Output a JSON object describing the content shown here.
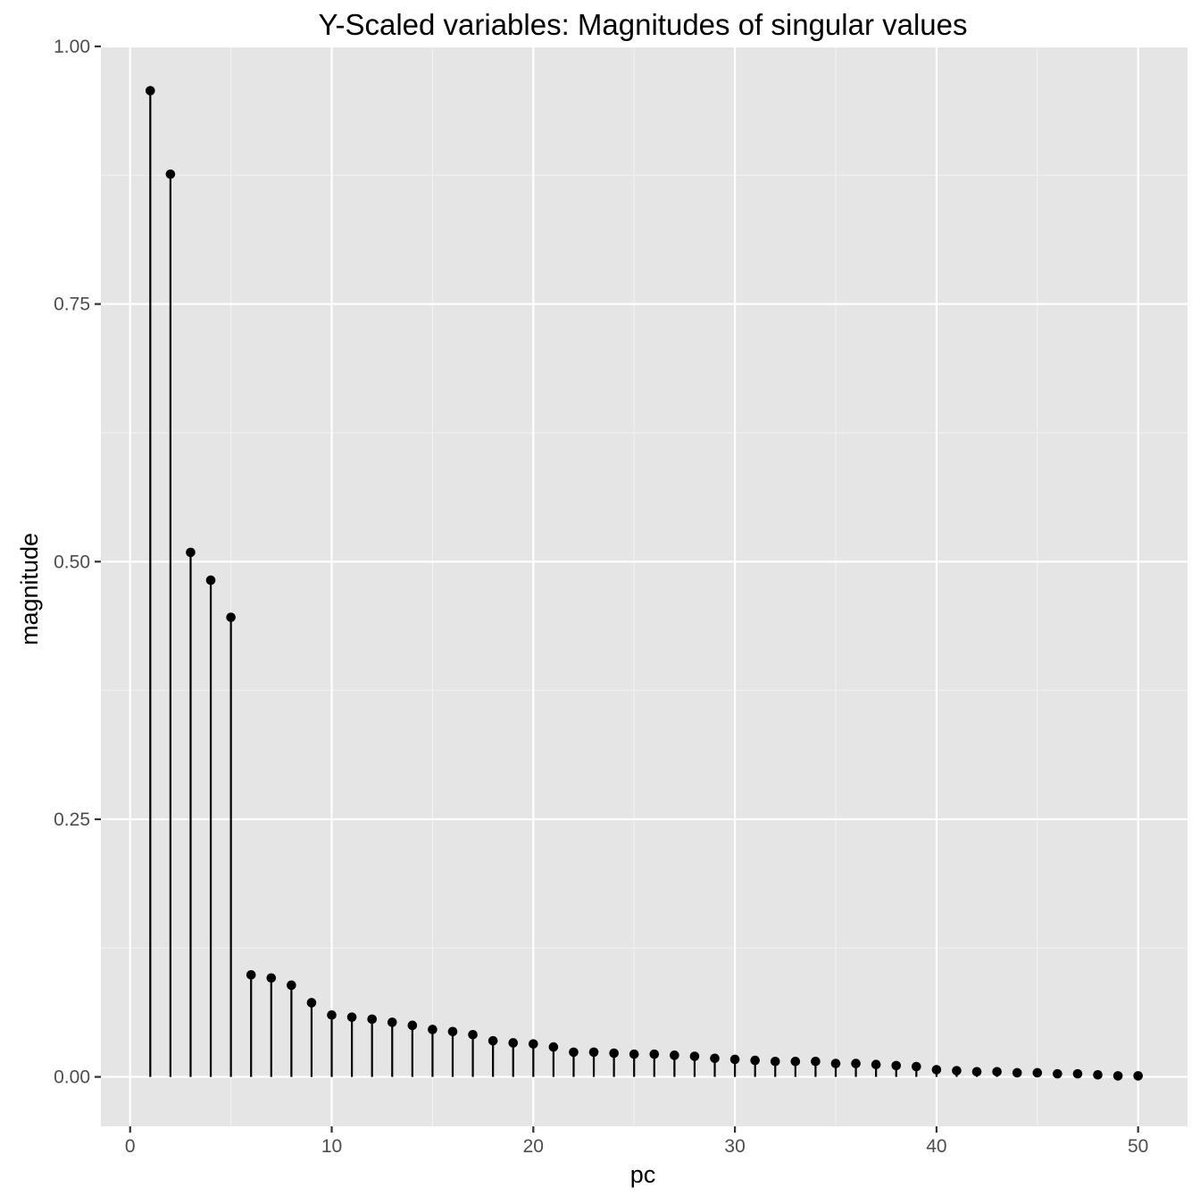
{
  "chart_data": {
    "type": "stem",
    "title": "Y-Scaled variables: Magnitudes of singular values",
    "xlabel": "pc",
    "ylabel": "magnitude",
    "xlim": [
      -1.45,
      52.45
    ],
    "ylim": [
      -0.048,
      1.0
    ],
    "x_ticks": [
      0,
      10,
      20,
      30,
      40,
      50
    ],
    "x_tick_labels": [
      "0",
      "10",
      "20",
      "30",
      "40",
      "50"
    ],
    "y_ticks": [
      0.0,
      0.25,
      0.5,
      0.75,
      1.0
    ],
    "y_tick_labels": [
      "0.00",
      "0.25",
      "0.50",
      "0.75",
      "1.00"
    ],
    "grid": true,
    "legend": "none",
    "colors": {
      "panel_background": "#e5e5e5",
      "grid_major": "#ffffff",
      "grid_minor": "#f2f2f2",
      "marks": "#000000",
      "tick_label": "#4d4d4d",
      "tick_mark": "#333333"
    },
    "series": [
      {
        "x": [
          1,
          2,
          3,
          4,
          5,
          6,
          7,
          8,
          9,
          10,
          11,
          12,
          13,
          14,
          15,
          16,
          17,
          18,
          19,
          20,
          21,
          22,
          23,
          24,
          25,
          26,
          27,
          28,
          29,
          30,
          31,
          32,
          33,
          34,
          35,
          36,
          37,
          38,
          39,
          40,
          41,
          42,
          43,
          44,
          45,
          46,
          47,
          48,
          49,
          50
        ],
        "values": [
          0.957,
          0.876,
          0.509,
          0.482,
          0.446,
          0.099,
          0.096,
          0.089,
          0.072,
          0.06,
          0.058,
          0.056,
          0.053,
          0.05,
          0.046,
          0.044,
          0.041,
          0.035,
          0.033,
          0.032,
          0.029,
          0.024,
          0.024,
          0.023,
          0.022,
          0.022,
          0.021,
          0.02,
          0.018,
          0.017,
          0.016,
          0.015,
          0.015,
          0.015,
          0.013,
          0.013,
          0.012,
          0.011,
          0.01,
          0.007,
          0.006,
          0.005,
          0.005,
          0.004,
          0.004,
          0.003,
          0.003,
          0.002,
          0.001,
          0.001
        ]
      }
    ]
  }
}
